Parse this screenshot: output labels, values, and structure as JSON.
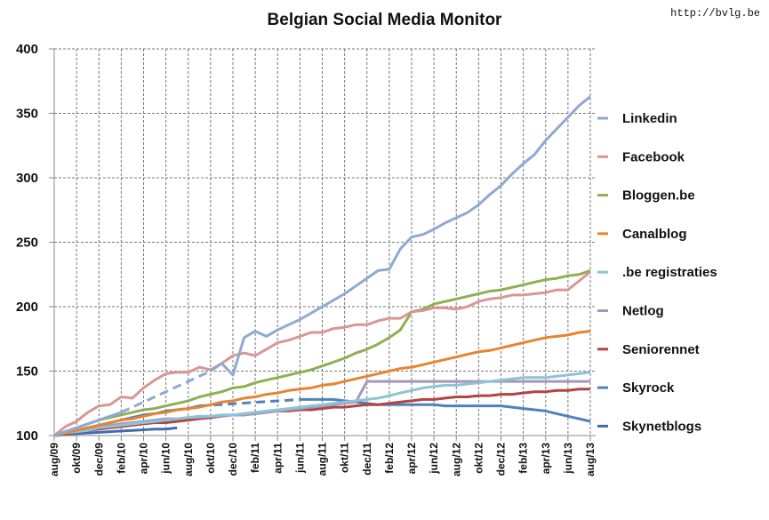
{
  "chart_data": {
    "type": "line",
    "title": "Belgian Social Media Monitor",
    "source_label": "http://bvlg.be",
    "xlabel": "",
    "ylabel": "",
    "ylim": [
      100,
      400
    ],
    "yticks": [
      100,
      150,
      200,
      250,
      300,
      350,
      400
    ],
    "grid": true,
    "legend_position": "right",
    "x_tick_labels": [
      "aug/09",
      "okt/09",
      "dec/09",
      "feb/10",
      "apr/10",
      "jun/10",
      "aug/10",
      "okt/10",
      "dec/10",
      "feb/11",
      "apr/11",
      "jun/11",
      "aug/11",
      "okt/11",
      "dec/11",
      "feb/12",
      "apr/12",
      "jun/12",
      "aug/12",
      "okt/12",
      "dec/12",
      "feb/13",
      "apr/13",
      "jun/13",
      "aug/13"
    ],
    "x_note": "monthly points aug/09 to aug/13; null = missing month (bridged with dashed line)",
    "series": [
      {
        "name": "Linkedin",
        "color": "#8EA9D4",
        "values": [
          100,
          103,
          106,
          109,
          112,
          115,
          118,
          null,
          null,
          null,
          null,
          null,
          null,
          null,
          150,
          156,
          147,
          176,
          181,
          177,
          182,
          186,
          190,
          195,
          200,
          205,
          210,
          216,
          222,
          228,
          229,
          245,
          254,
          256,
          260,
          265,
          269,
          273,
          279,
          287,
          294,
          303,
          311,
          318,
          329,
          338,
          347,
          356,
          363
        ]
      },
      {
        "name": "Facebook",
        "color": "#D99694",
        "values": [
          100,
          107,
          111,
          118,
          123,
          124,
          130,
          129,
          137,
          143,
          148,
          149,
          149,
          153,
          151,
          156,
          162,
          164,
          162,
          167,
          172,
          174,
          177,
          180,
          180,
          183,
          184,
          186,
          186,
          189,
          191,
          191,
          196,
          197,
          199,
          199,
          198,
          200,
          204,
          206,
          207,
          209,
          209,
          210,
          211,
          213,
          213,
          220,
          227
        ]
      },
      {
        "name": "Bloggen.be",
        "color": "#8DB050",
        "values": [
          100,
          103,
          106,
          109,
          112,
          114,
          116,
          118,
          120,
          121,
          123,
          125,
          127,
          130,
          132,
          134,
          137,
          138,
          141,
          143,
          145,
          147,
          149,
          151,
          154,
          157,
          160,
          164,
          167,
          171,
          176,
          182,
          196,
          198,
          202,
          204,
          206,
          208,
          210,
          212,
          213,
          215,
          217,
          219,
          221,
          222,
          224,
          225,
          228
        ]
      },
      {
        "name": "Canalblog",
        "color": "#E8832F",
        "values": [
          100,
          102,
          104,
          106,
          108,
          110,
          112,
          113,
          115,
          117,
          118,
          120,
          121,
          122,
          124,
          126,
          127,
          129,
          130,
          132,
          133,
          135,
          136,
          137,
          139,
          140,
          142,
          144,
          146,
          148,
          150,
          152,
          153,
          155,
          157,
          159,
          161,
          163,
          165,
          166,
          168,
          170,
          172,
          174,
          176,
          177,
          178,
          180,
          181
        ]
      },
      {
        "name": ".be registraties",
        "color": "#8CC4D6",
        "values": [
          100,
          102,
          103,
          104,
          106,
          107,
          108,
          109,
          110,
          111,
          112,
          113,
          114,
          115,
          115,
          116,
          116,
          117,
          118,
          119,
          120,
          121,
          122,
          123,
          124,
          125,
          126,
          127,
          128,
          129,
          131,
          133,
          135,
          137,
          138,
          139,
          139,
          140,
          141,
          142,
          143,
          144,
          145,
          145,
          145,
          146,
          147,
          148,
          149
        ]
      },
      {
        "name": "Netlog",
        "color": "#A596BA",
        "values": [
          100,
          102,
          104,
          106,
          107,
          108,
          109,
          110,
          111,
          112,
          113,
          113,
          114,
          114,
          115,
          115,
          116,
          116,
          117,
          118,
          119,
          120,
          121,
          122,
          123,
          124,
          125,
          126,
          142,
          142,
          142,
          142,
          142,
          142,
          142,
          142,
          142,
          142,
          142,
          142,
          142,
          142,
          142,
          142,
          142,
          142,
          142,
          142,
          142
        ]
      },
      {
        "name": "Seniorennet",
        "color": "#B24442",
        "values": [
          100,
          101,
          103,
          104,
          105,
          106,
          107,
          108,
          109,
          110,
          110,
          111,
          112,
          113,
          114,
          115,
          116,
          116,
          117,
          118,
          119,
          119,
          120,
          120,
          121,
          122,
          122,
          123,
          124,
          124,
          125,
          126,
          127,
          128,
          128,
          129,
          130,
          130,
          131,
          131,
          132,
          132,
          133,
          134,
          134,
          135,
          135,
          136,
          136
        ]
      },
      {
        "name": "Skyrock",
        "color": "#4F81BD",
        "values": [
          100,
          102,
          104,
          106,
          108,
          110,
          112,
          114,
          116,
          117,
          119,
          120,
          121,
          123,
          null,
          null,
          null,
          null,
          null,
          null,
          null,
          null,
          128,
          128,
          128,
          128,
          127,
          126,
          125,
          124,
          124,
          124,
          124,
          124,
          124,
          123,
          123,
          123,
          123,
          123,
          123,
          122,
          121,
          120,
          119,
          117,
          115,
          113,
          111
        ]
      },
      {
        "name": "Skynetblogs",
        "color": "#3E6DAE",
        "values": [
          100,
          101,
          101.5,
          102,
          102.5,
          103,
          103.5,
          104,
          104.5,
          105,
          105,
          106,
          null,
          null,
          null,
          null,
          null,
          null,
          null,
          null,
          null,
          null,
          null,
          null,
          null,
          null,
          null,
          null,
          null,
          null,
          null,
          null,
          null,
          null,
          null,
          null,
          null,
          null,
          null,
          null,
          null,
          null,
          null,
          null,
          null,
          null,
          null,
          null,
          null
        ]
      }
    ]
  }
}
